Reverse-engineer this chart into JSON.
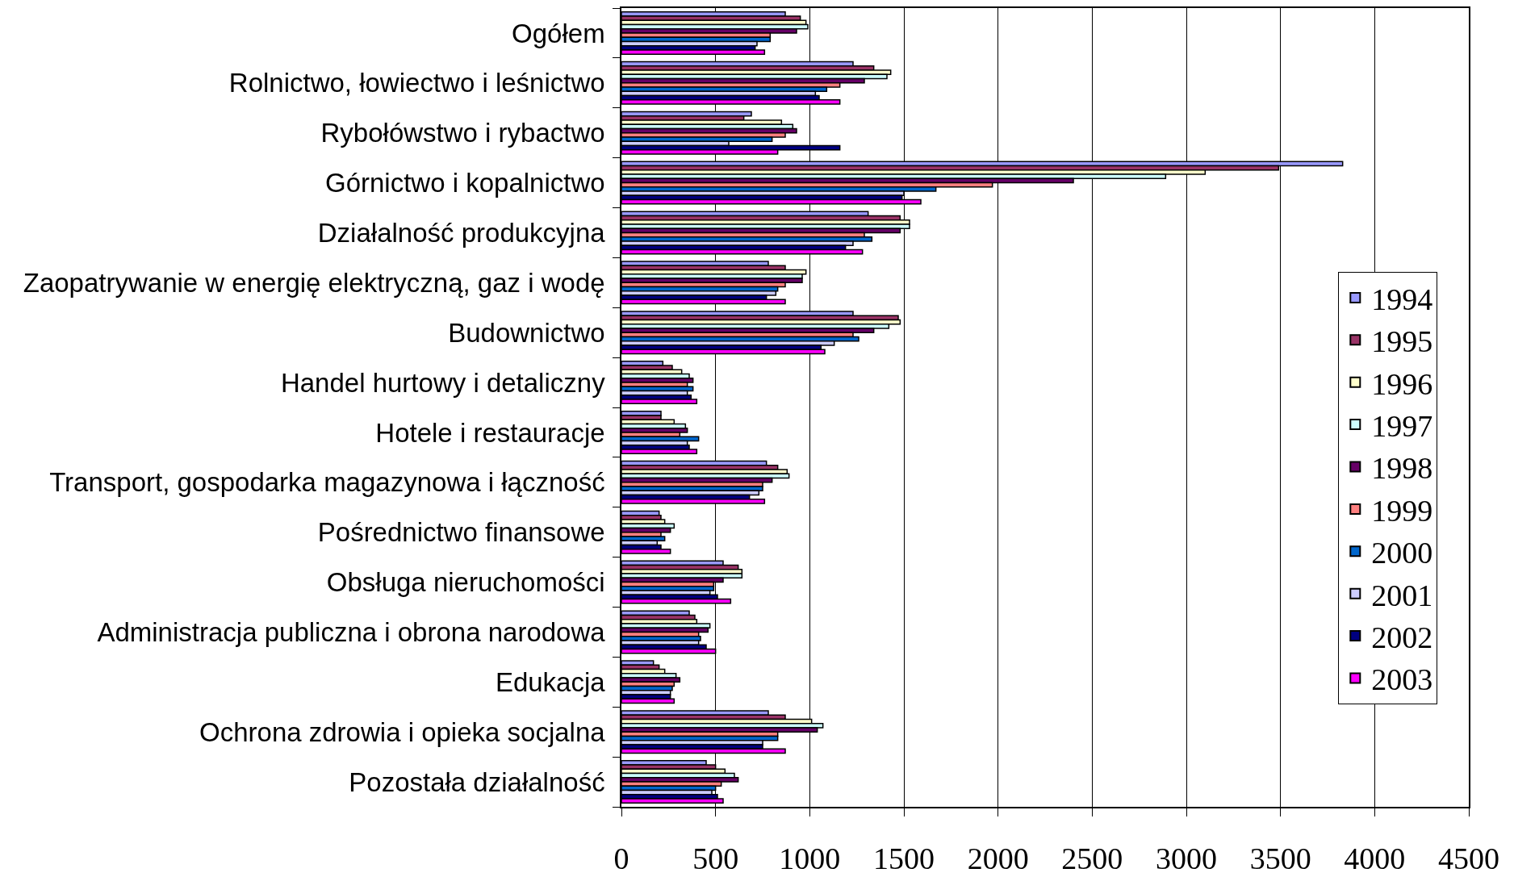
{
  "chart_data": {
    "type": "bar",
    "orientation": "horizontal",
    "categories": [
      "Ogółem",
      "Rolnictwo, łowiectwo i leśnictwo",
      "Rybołówstwo i rybactwo",
      "Górnictwo i kopalnictwo",
      "Działalność produkcyjna",
      "Zaopatrywanie w energię elektryczną, gaz i wodę",
      "Budownictwo",
      "Handel hurtowy i detaliczny",
      "Hotele i restauracje",
      "Transport, gospodarka magazynowa i łączność",
      "Pośrednictwo finansowe",
      "Obsługa nieruchomości",
      "Administracja publiczna i obrona narodowa",
      "Edukacja",
      "Ochrona zdrowia i opieka socjalna",
      "Pozostała działalność"
    ],
    "series": [
      {
        "name": "1994",
        "color": "#9999ff",
        "values": [
          870,
          1230,
          690,
          3830,
          1310,
          780,
          1230,
          220,
          210,
          770,
          200,
          540,
          360,
          170,
          780,
          450
        ]
      },
      {
        "name": "1995",
        "color": "#993366",
        "values": [
          950,
          1340,
          650,
          3490,
          1480,
          870,
          1470,
          270,
          210,
          830,
          210,
          620,
          390,
          200,
          870,
          500
        ]
      },
      {
        "name": "1996",
        "color": "#ffffcc",
        "values": [
          980,
          1430,
          850,
          3100,
          1530,
          980,
          1480,
          320,
          280,
          880,
          230,
          640,
          400,
          230,
          1010,
          550
        ]
      },
      {
        "name": "1997",
        "color": "#ccffff",
        "values": [
          990,
          1410,
          910,
          2890,
          1530,
          960,
          1420,
          360,
          340,
          890,
          280,
          640,
          470,
          290,
          1070,
          600
        ]
      },
      {
        "name": "1998",
        "color": "#660066",
        "values": [
          930,
          1290,
          930,
          2400,
          1480,
          960,
          1340,
          380,
          350,
          800,
          260,
          540,
          460,
          310,
          1040,
          620
        ]
      },
      {
        "name": "1999",
        "color": "#ff8080",
        "values": [
          790,
          1160,
          870,
          1970,
          1290,
          870,
          1230,
          350,
          310,
          750,
          210,
          490,
          410,
          280,
          830,
          530
        ]
      },
      {
        "name": "2000",
        "color": "#0066cc",
        "values": [
          790,
          1090,
          800,
          1670,
          1330,
          830,
          1260,
          380,
          410,
          750,
          230,
          490,
          420,
          270,
          830,
          500
        ]
      },
      {
        "name": "2001",
        "color": "#ccccff",
        "values": [
          720,
          1030,
          570,
          1500,
          1230,
          820,
          1130,
          350,
          350,
          730,
          190,
          470,
          410,
          260,
          750,
          480
        ]
      },
      {
        "name": "2002",
        "color": "#000080",
        "values": [
          710,
          1050,
          1160,
          1490,
          1190,
          770,
          1060,
          370,
          360,
          680,
          210,
          510,
          450,
          260,
          750,
          510
        ]
      },
      {
        "name": "2003",
        "color": "#ff00ff",
        "values": [
          760,
          1160,
          830,
          1590,
          1280,
          870,
          1080,
          400,
          400,
          760,
          260,
          580,
          500,
          280,
          870,
          540
        ]
      }
    ],
    "xlim": [
      0,
      4500
    ],
    "xticks": [
      0,
      500,
      1000,
      1500,
      2000,
      2500,
      3000,
      3500,
      4000,
      4500
    ],
    "grid": "x",
    "legend": "right"
  }
}
